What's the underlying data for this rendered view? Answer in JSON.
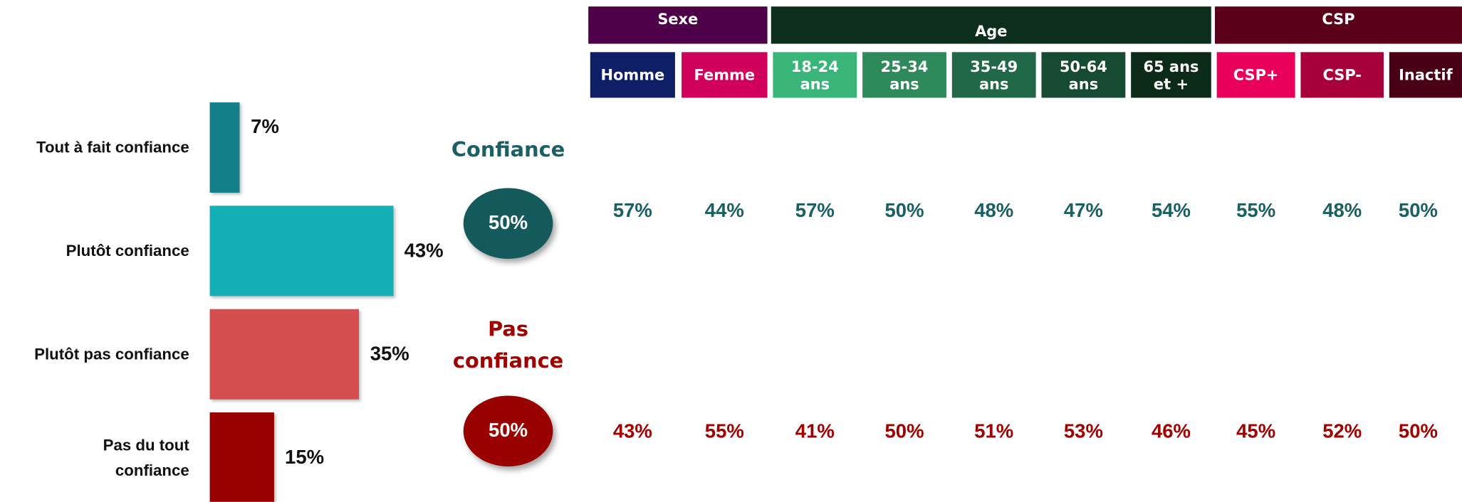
{
  "chart_data": {
    "type": "bar",
    "orientation": "horizontal",
    "categories": [
      "Tout à fait confiance",
      "Plutôt confiance",
      "Plutôt pas confiance",
      "Pas du tout confiance"
    ],
    "values": [
      7,
      43,
      35,
      15
    ],
    "value_labels": [
      "7%",
      "43%",
      "35%",
      "15%"
    ],
    "colors": [
      "#137f8a",
      "#14b0b8",
      "#d64f50",
      "#990000"
    ]
  },
  "summary": [
    {
      "label": "Confiance",
      "value": 50,
      "value_label": "50%",
      "color": "#145a5c"
    },
    {
      "label": "Pas confiance",
      "value": 50,
      "value_label": "50%",
      "color": "#990000"
    }
  ],
  "table": {
    "groups": [
      {
        "label": "Sexe",
        "color": "#4d0047",
        "span": 2
      },
      {
        "label": "Age",
        "color": "#0d2e1c",
        "span": 5
      },
      {
        "label": "CSP",
        "color": "#5a0018",
        "span": 3
      }
    ],
    "columns": [
      {
        "lines": [
          "Homme"
        ],
        "color": "#0f1f66"
      },
      {
        "lines": [
          "Femme"
        ],
        "color": "#d1005b"
      },
      {
        "lines": [
          "18-24",
          "ans"
        ],
        "color": "#3ab57a"
      },
      {
        "lines": [
          "25-34",
          "ans"
        ],
        "color": "#2e8a5a"
      },
      {
        "lines": [
          "35-49",
          "ans"
        ],
        "color": "#206848"
      },
      {
        "lines": [
          "50-64",
          "ans"
        ],
        "color": "#164a32"
      },
      {
        "lines": [
          "65 ans",
          "et +"
        ],
        "color": "#0c2a18"
      },
      {
        "lines": [
          "CSP+"
        ],
        "color": "#e8005a"
      },
      {
        "lines": [
          "CSP-"
        ],
        "color": "#a8003a"
      },
      {
        "lines": [
          "Inactif"
        ],
        "color": "#4a0014"
      }
    ],
    "rows": [
      [
        "57%",
        "44%",
        "57%",
        "50%",
        "48%",
        "47%",
        "54%",
        "55%",
        "48%",
        "50%"
      ],
      [
        "43%",
        "55%",
        "41%",
        "50%",
        "51%",
        "53%",
        "46%",
        "45%",
        "52%",
        "50%"
      ]
    ]
  }
}
